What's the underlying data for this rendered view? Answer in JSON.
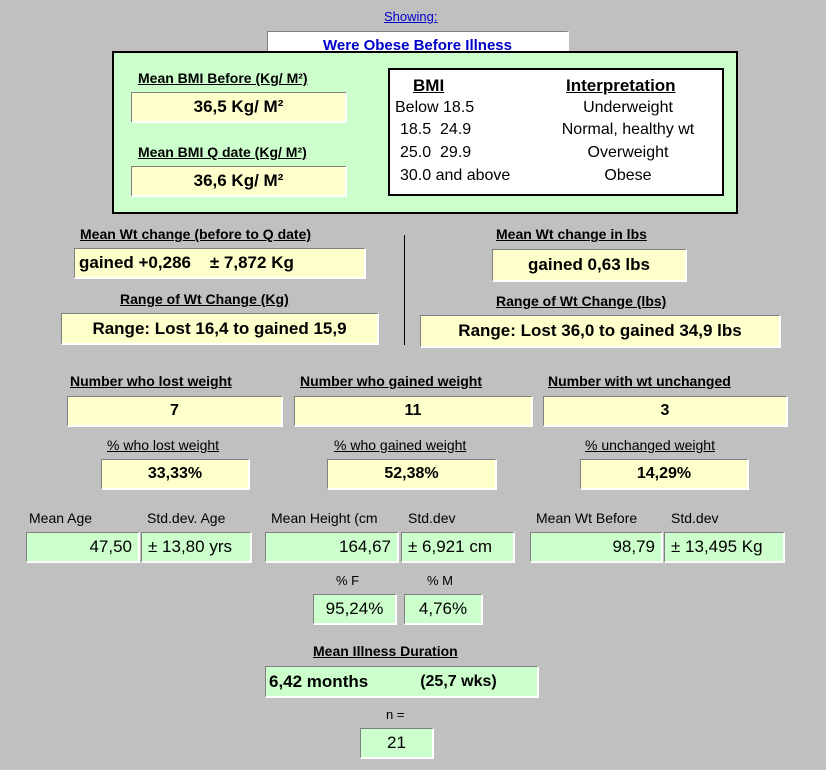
{
  "header": {
    "showing_label": "Showing:",
    "filter_value": "Were Obese Before Illness"
  },
  "bmi_panel": {
    "before_label": "Mean BMI Before (Kg/ M²)",
    "before_value": "36,5 Kg/ M²",
    "qdate_label": "Mean BMI Q date (Kg/ M²)",
    "qdate_value": "36,6 Kg/ M²",
    "table": {
      "col_bmi": "BMI",
      "col_interp": "Interpretation",
      "rows": [
        {
          "bmi": "Below 18.5",
          "interp": "Underweight"
        },
        {
          "bmi": "18.5  24.9",
          "interp": "Normal, healthy wt"
        },
        {
          "bmi": "25.0  29.9",
          "interp": "Overweight"
        },
        {
          "bmi": "30.0 and above",
          "interp": "Obese"
        }
      ]
    }
  },
  "wt_change": {
    "kg_label": "Mean Wt change (before to Q date)",
    "kg_value": "gained +0,286    ± 7,872 Kg",
    "kg_range_label": "Range of Wt Change (Kg)",
    "kg_range_value": "Range: Lost 16,4 to gained 15,9",
    "lbs_label": "Mean Wt change in lbs",
    "lbs_value": "gained 0,63 lbs",
    "lbs_range_label": "Range of Wt Change (lbs)",
    "lbs_range_value": "Range: Lost 36,0 to gained 34,9 lbs"
  },
  "counts": {
    "lost_label": "Number who lost weight",
    "lost_value": "7",
    "gained_label": "Number who gained weight",
    "gained_value": "11",
    "unchanged_label": "Number with wt unchanged",
    "unchanged_value": "3",
    "lost_pct_label": "% who lost weight",
    "lost_pct_value": "33,33%",
    "gained_pct_label": "% who gained weight",
    "gained_pct_value": "52,38%",
    "unchanged_pct_label": "% unchanged weight",
    "unchanged_pct_value": "14,29%"
  },
  "stats": {
    "mean_age_label": "Mean Age",
    "mean_age_value": "47,50",
    "sd_age_label": "Std.dev. Age",
    "sd_age_value": "± 13,80 yrs",
    "mean_height_label": "Mean Height (cm",
    "mean_height_value": "164,67",
    "sd_height_label": "Std.dev",
    "sd_height_value": "± 6,921 cm",
    "mean_wt_label": "Mean Wt Before",
    "mean_wt_value": "98,79",
    "sd_wt_label": "Std.dev",
    "sd_wt_value": "± 13,495 Kg",
    "pct_f_label": "% F",
    "pct_f_value": "95,24%",
    "pct_m_label": "% M",
    "pct_m_value": "4,76%"
  },
  "duration": {
    "label": "Mean Illness Duration",
    "months": "6,42 months",
    "weeks": "(25,7 wks)"
  },
  "sample": {
    "label": "n =",
    "value": "21"
  }
}
